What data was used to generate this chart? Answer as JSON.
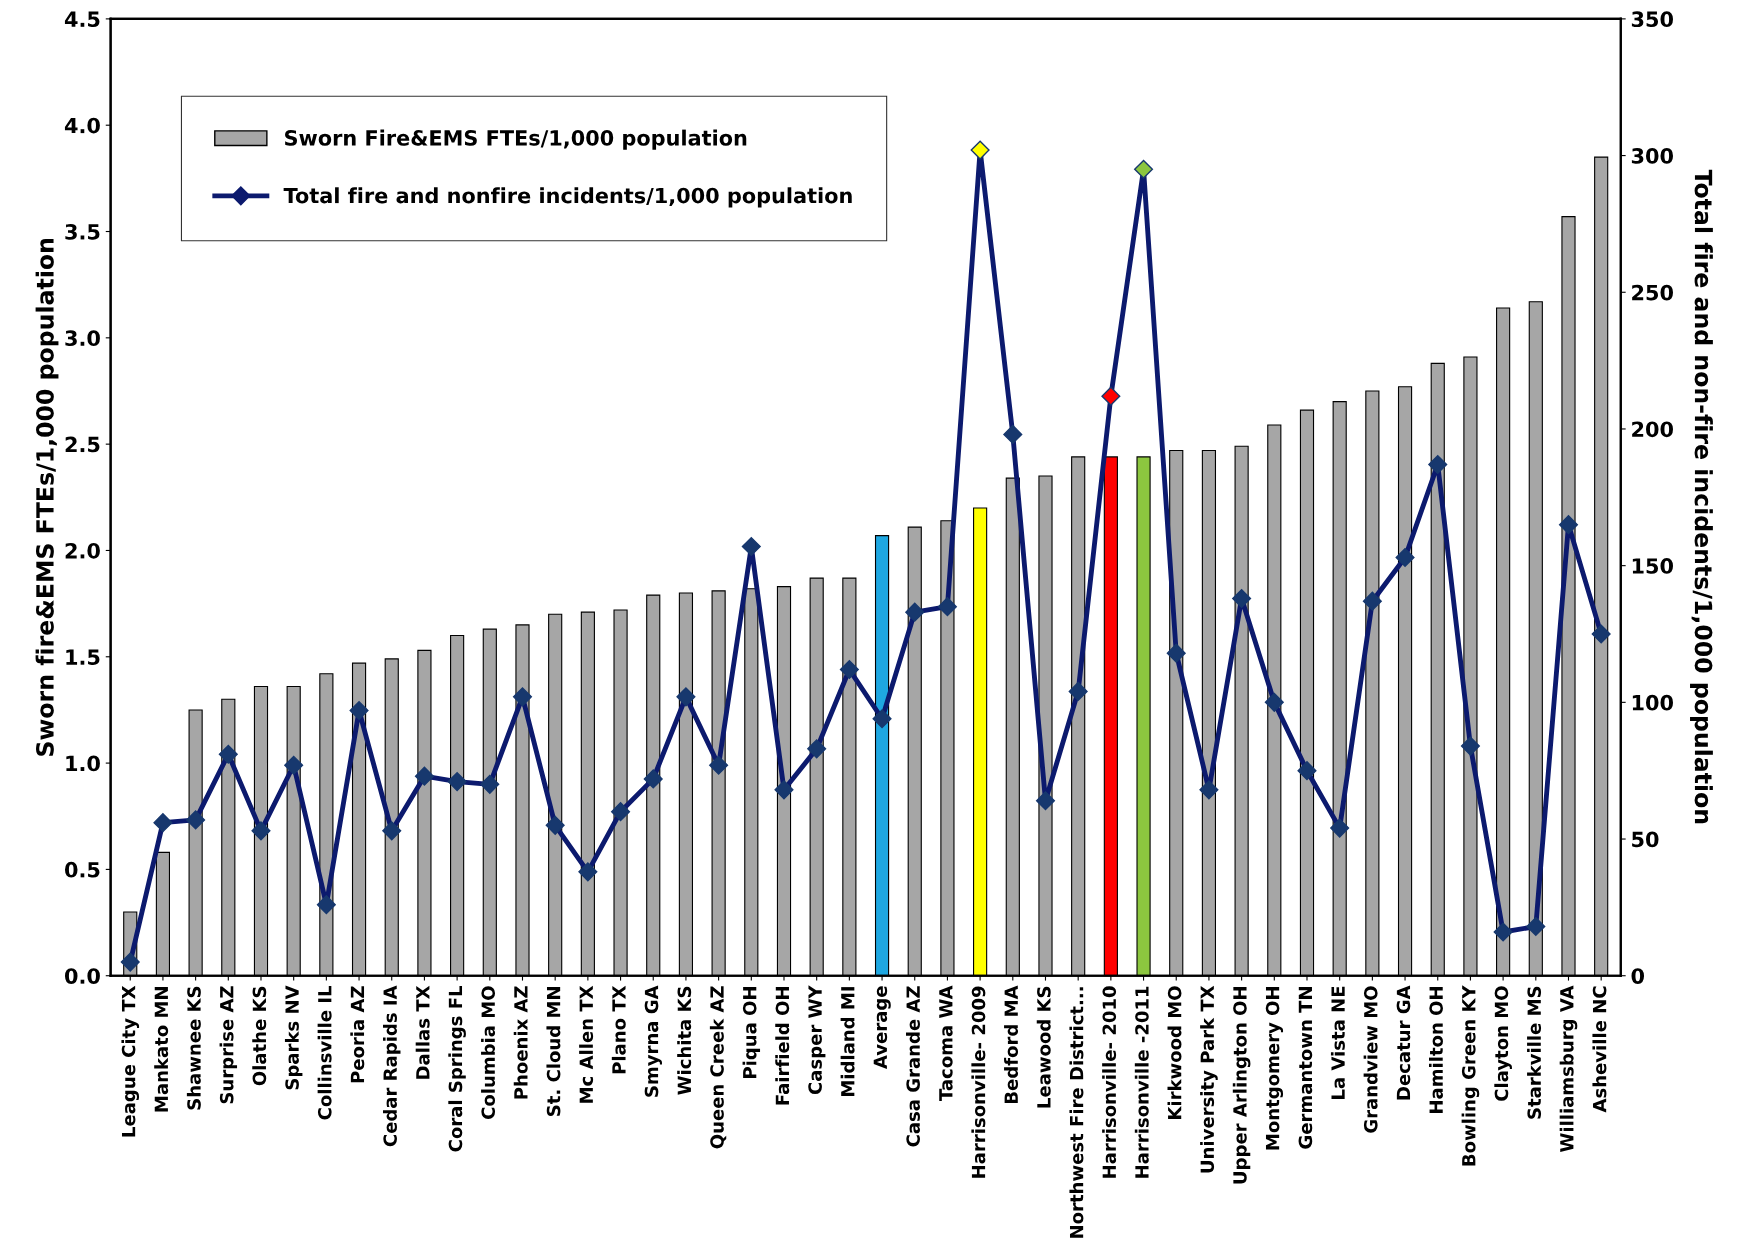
{
  "chart_data": {
    "type": "bar",
    "categories": [
      "League City TX",
      "Mankato MN",
      "Shawnee KS",
      "Surprise AZ",
      "Olathe KS",
      "Sparks NV",
      "Collinsville IL",
      "Peoria AZ",
      "Cedar Rapids IA",
      "Dallas TX",
      "Coral Springs FL",
      "Columbia MO",
      "Phoenix AZ",
      "St. Cloud MN",
      "Mc Allen TX",
      "Plano TX",
      "Smyrna GA",
      "Wichita KS",
      "Queen Creek AZ",
      "Piqua OH",
      "Fairfield OH",
      "Casper WY",
      "Midland MI",
      "Average",
      "Casa Grande AZ",
      "Tacoma WA",
      "Harrisonville- 2009",
      "Bedford MA",
      "Leawood KS",
      "Northwest Fire District...",
      "Harrisonville- 2010",
      "Harrisonville -2011",
      "Kirkwood MO",
      "University Park TX",
      "Upper Arlington OH",
      "Montgomery OH",
      "Germantown TN",
      "La Vista NE",
      "Grandview MO",
      "Decatur GA",
      "Hamilton OH",
      "Bowling Green KY",
      "Clayton MO",
      "Starkville MS",
      "Williamsburg VA",
      "Asheville NC"
    ],
    "series": [
      {
        "name": "Sworn Fire&EMS FTEs/1,000 population",
        "color": "#a6a6a6",
        "colors": [
          "#a6a6a6",
          "#a6a6a6",
          "#a6a6a6",
          "#a6a6a6",
          "#a6a6a6",
          "#a6a6a6",
          "#a6a6a6",
          "#a6a6a6",
          "#a6a6a6",
          "#a6a6a6",
          "#a6a6a6",
          "#a6a6a6",
          "#a6a6a6",
          "#a6a6a6",
          "#a6a6a6",
          "#a6a6a6",
          "#a6a6a6",
          "#a6a6a6",
          "#a6a6a6",
          "#a6a6a6",
          "#a6a6a6",
          "#a6a6a6",
          "#a6a6a6",
          "#1ea7e1",
          "#a6a6a6",
          "#a6a6a6",
          "#ffff00",
          "#a6a6a6",
          "#a6a6a6",
          "#a6a6a6",
          "#ff0000",
          "#8cc63f",
          "#a6a6a6",
          "#a6a6a6",
          "#a6a6a6",
          "#a6a6a6",
          "#a6a6a6",
          "#a6a6a6",
          "#a6a6a6",
          "#a6a6a6",
          "#a6a6a6",
          "#a6a6a6",
          "#a6a6a6",
          "#a6a6a6",
          "#a6a6a6",
          "#a6a6a6"
        ],
        "values": [
          0.3,
          0.58,
          1.25,
          1.3,
          1.36,
          1.36,
          1.42,
          1.47,
          1.49,
          1.53,
          1.6,
          1.63,
          1.65,
          1.7,
          1.71,
          1.72,
          1.79,
          1.8,
          1.81,
          1.82,
          1.83,
          1.87,
          1.87,
          2.07,
          2.11,
          2.14,
          2.2,
          2.34,
          2.35,
          2.44,
          2.44,
          2.44,
          2.47,
          2.47,
          2.49,
          2.59,
          2.66,
          2.7,
          2.75,
          2.77,
          2.88,
          2.91,
          3.14,
          3.17,
          3.57,
          3.85
        ]
      },
      {
        "name": "Total fire and nonfire incidents/1,000 population",
        "type": "line",
        "axis": "y2",
        "color": "#0c1a6e",
        "colors": [
          "#17386e",
          "#17386e",
          "#17386e",
          "#17386e",
          "#17386e",
          "#17386e",
          "#17386e",
          "#17386e",
          "#17386e",
          "#17386e",
          "#17386e",
          "#17386e",
          "#17386e",
          "#17386e",
          "#17386e",
          "#17386e",
          "#17386e",
          "#17386e",
          "#17386e",
          "#17386e",
          "#17386e",
          "#17386e",
          "#17386e",
          "#17386e",
          "#17386e",
          "#17386e",
          "#ffff00",
          "#17386e",
          "#17386e",
          "#17386e",
          "#ff0000",
          "#8cc63f",
          "#17386e",
          "#17386e",
          "#17386e",
          "#17386e",
          "#17386e",
          "#17386e",
          "#17386e",
          "#17386e",
          "#17386e",
          "#17386e",
          "#17386e",
          "#17386e",
          "#17386e",
          "#17386e"
        ],
        "values": [
          5,
          56,
          57,
          81,
          53,
          77,
          26,
          97,
          53,
          73,
          71,
          70,
          102,
          55,
          38,
          60,
          72,
          102,
          77,
          157,
          68,
          83,
          112,
          94,
          133,
          135,
          302,
          198,
          64,
          104,
          212,
          295,
          118,
          68,
          138,
          100,
          75,
          54,
          137,
          153,
          187,
          84,
          16,
          18,
          165,
          125
        ]
      }
    ],
    "ylabel": "Sworn fire&EMS FTEs/1,000 population",
    "y2label": "Total fire and non-fire incidents/1,000 population",
    "ylim": [
      0,
      4.5
    ],
    "yticks": [
      {
        "value": 0,
        "label": "0.0"
      },
      0.5,
      {
        "value": 1,
        "label": "1.0"
      },
      1.5,
      {
        "value": 2,
        "label": "2.0"
      },
      2.5,
      {
        "value": 3,
        "label": "3.0"
      },
      3.5,
      {
        "value": 4,
        "label": "4.0"
      },
      4.5
    ],
    "y2lim": [
      0,
      350
    ],
    "y2ticks": [
      0,
      50,
      100,
      150,
      200,
      250,
      300,
      350
    ],
    "marker": "diamond",
    "line_style": "solid",
    "legend": "top left",
    "grid": false
  }
}
